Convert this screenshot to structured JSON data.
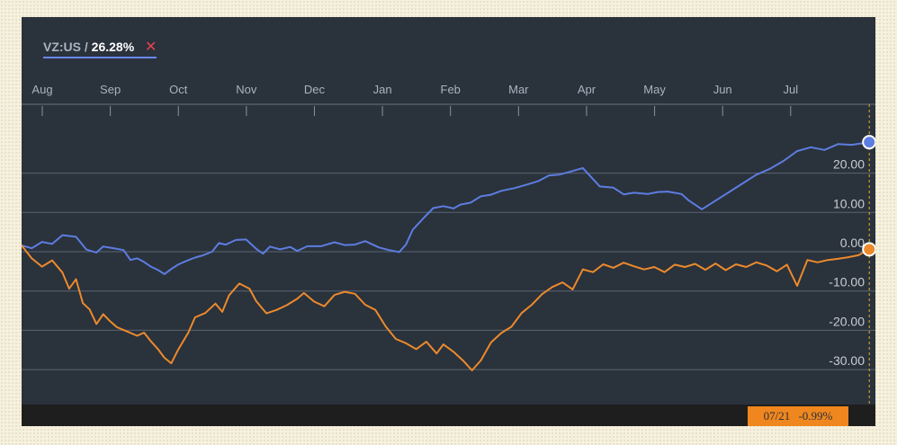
{
  "legend": {
    "ticker": "VZ:US",
    "separator": "/",
    "change": "26.28%",
    "close_symbol": "✕"
  },
  "badge": {
    "date": "07/21",
    "value": "-0.99%"
  },
  "colors": {
    "background": "#2a323c",
    "series_blue": "#5d7de0",
    "series_orange": "#ec8a2c",
    "cursor": "#e5b021",
    "grid": "#5b6570",
    "badge": "#f0861e"
  },
  "chart_data": {
    "type": "line",
    "x_months": [
      "Aug",
      "Sep",
      "Oct",
      "Nov",
      "Dec",
      "Jan",
      "Feb",
      "Mar",
      "Apr",
      "May",
      "Jun",
      "Jul"
    ],
    "y_ticks": [
      "20.00",
      "10.00",
      "0.00",
      "-10.00",
      "-20.00",
      "-30.00"
    ],
    "ylim": [
      -37,
      33
    ],
    "x_range": [
      0,
      12.55
    ],
    "grid": "horizontal",
    "cursor_x": 12.46,
    "series": [
      {
        "name": "VZ:US",
        "color": "#5d7de0",
        "end_value": 26.28,
        "points": [
          [
            0.0,
            0.0
          ],
          [
            0.15,
            -0.7
          ],
          [
            0.3,
            0.9
          ],
          [
            0.45,
            0.4
          ],
          [
            0.6,
            2.6
          ],
          [
            0.8,
            2.2
          ],
          [
            0.95,
            -1.0
          ],
          [
            1.0,
            -1.3
          ],
          [
            1.1,
            -1.8
          ],
          [
            1.2,
            -0.3
          ],
          [
            1.35,
            -0.7
          ],
          [
            1.5,
            -1.2
          ],
          [
            1.6,
            -3.7
          ],
          [
            1.7,
            -3.3
          ],
          [
            1.8,
            -4.2
          ],
          [
            1.9,
            -5.4
          ],
          [
            2.0,
            -6.2
          ],
          [
            2.1,
            -7.3
          ],
          [
            2.2,
            -6.0
          ],
          [
            2.3,
            -4.9
          ],
          [
            2.4,
            -4.1
          ],
          [
            2.55,
            -3.1
          ],
          [
            2.65,
            -2.6
          ],
          [
            2.8,
            -1.6
          ],
          [
            2.9,
            0.6
          ],
          [
            3.0,
            0.2
          ],
          [
            3.15,
            1.4
          ],
          [
            3.3,
            1.5
          ],
          [
            3.45,
            -0.9
          ],
          [
            3.55,
            -2.1
          ],
          [
            3.65,
            -0.3
          ],
          [
            3.8,
            -1.0
          ],
          [
            3.95,
            -0.4
          ],
          [
            4.05,
            -1.4
          ],
          [
            4.2,
            -0.2
          ],
          [
            4.4,
            -0.2
          ],
          [
            4.6,
            0.8
          ],
          [
            4.75,
            0.1
          ],
          [
            4.9,
            0.2
          ],
          [
            5.05,
            1.1
          ],
          [
            5.25,
            -0.5
          ],
          [
            5.4,
            -1.2
          ],
          [
            5.55,
            -1.7
          ],
          [
            5.65,
            0.2
          ],
          [
            5.75,
            4.0
          ],
          [
            5.9,
            6.8
          ],
          [
            6.05,
            9.5
          ],
          [
            6.2,
            10.0
          ],
          [
            6.35,
            9.4
          ],
          [
            6.45,
            10.4
          ],
          [
            6.6,
            10.9
          ],
          [
            6.75,
            12.5
          ],
          [
            6.9,
            12.9
          ],
          [
            7.05,
            13.9
          ],
          [
            7.25,
            14.6
          ],
          [
            7.45,
            15.6
          ],
          [
            7.6,
            16.4
          ],
          [
            7.75,
            17.8
          ],
          [
            7.9,
            18.0
          ],
          [
            8.05,
            18.7
          ],
          [
            8.25,
            19.7
          ],
          [
            8.35,
            17.8
          ],
          [
            8.5,
            15.0
          ],
          [
            8.7,
            14.7
          ],
          [
            8.85,
            13.0
          ],
          [
            9.0,
            13.4
          ],
          [
            9.2,
            13.1
          ],
          [
            9.35,
            13.6
          ],
          [
            9.5,
            13.7
          ],
          [
            9.7,
            13.1
          ],
          [
            9.8,
            11.5
          ],
          [
            10.0,
            9.2
          ],
          [
            10.2,
            11.4
          ],
          [
            10.4,
            13.6
          ],
          [
            10.6,
            15.8
          ],
          [
            10.8,
            18.0
          ],
          [
            11.0,
            19.5
          ],
          [
            11.2,
            21.5
          ],
          [
            11.4,
            24.0
          ],
          [
            11.6,
            25.0
          ],
          [
            11.8,
            24.3
          ],
          [
            12.0,
            25.8
          ],
          [
            12.2,
            25.6
          ],
          [
            12.46,
            26.28
          ]
        ]
      },
      {
        "name": "",
        "color": "#ec8a2c",
        "end_value": -0.99,
        "points": [
          [
            0.0,
            0.0
          ],
          [
            0.15,
            -3.3
          ],
          [
            0.3,
            -5.4
          ],
          [
            0.45,
            -3.8
          ],
          [
            0.6,
            -6.9
          ],
          [
            0.7,
            -11.0
          ],
          [
            0.8,
            -8.6
          ],
          [
            0.9,
            -14.7
          ],
          [
            1.0,
            -16.3
          ],
          [
            1.1,
            -20.0
          ],
          [
            1.2,
            -17.5
          ],
          [
            1.3,
            -19.3
          ],
          [
            1.4,
            -20.8
          ],
          [
            1.55,
            -21.9
          ],
          [
            1.7,
            -23.0
          ],
          [
            1.8,
            -22.2
          ],
          [
            1.9,
            -24.4
          ],
          [
            2.0,
            -26.3
          ],
          [
            2.1,
            -28.6
          ],
          [
            2.2,
            -30.0
          ],
          [
            2.3,
            -26.6
          ],
          [
            2.45,
            -22.2
          ],
          [
            2.55,
            -18.3
          ],
          [
            2.7,
            -17.2
          ],
          [
            2.85,
            -14.8
          ],
          [
            2.95,
            -16.9
          ],
          [
            3.05,
            -12.7
          ],
          [
            3.2,
            -9.7
          ],
          [
            3.35,
            -11.0
          ],
          [
            3.45,
            -14.2
          ],
          [
            3.6,
            -17.3
          ],
          [
            3.75,
            -16.4
          ],
          [
            3.9,
            -15.2
          ],
          [
            4.05,
            -13.6
          ],
          [
            4.15,
            -12.1
          ],
          [
            4.3,
            -14.3
          ],
          [
            4.45,
            -15.5
          ],
          [
            4.6,
            -12.6
          ],
          [
            4.75,
            -11.8
          ],
          [
            4.9,
            -12.3
          ],
          [
            5.05,
            -15.1
          ],
          [
            5.2,
            -16.4
          ],
          [
            5.35,
            -20.6
          ],
          [
            5.5,
            -23.8
          ],
          [
            5.65,
            -24.9
          ],
          [
            5.8,
            -26.4
          ],
          [
            5.95,
            -24.5
          ],
          [
            6.1,
            -27.5
          ],
          [
            6.2,
            -25.2
          ],
          [
            6.35,
            -27.1
          ],
          [
            6.5,
            -29.5
          ],
          [
            6.62,
            -31.8
          ],
          [
            6.75,
            -29.3
          ],
          [
            6.9,
            -24.7
          ],
          [
            7.05,
            -22.3
          ],
          [
            7.2,
            -20.7
          ],
          [
            7.35,
            -17.2
          ],
          [
            7.5,
            -15.1
          ],
          [
            7.65,
            -12.4
          ],
          [
            7.8,
            -10.6
          ],
          [
            7.95,
            -9.4
          ],
          [
            8.1,
            -11.2
          ],
          [
            8.25,
            -6.1
          ],
          [
            8.4,
            -6.8
          ],
          [
            8.55,
            -4.8
          ],
          [
            8.7,
            -5.7
          ],
          [
            8.85,
            -4.4
          ],
          [
            9.0,
            -5.3
          ],
          [
            9.15,
            -6.1
          ],
          [
            9.3,
            -5.5
          ],
          [
            9.45,
            -6.8
          ],
          [
            9.6,
            -4.9
          ],
          [
            9.75,
            -5.5
          ],
          [
            9.9,
            -4.7
          ],
          [
            10.05,
            -6.2
          ],
          [
            10.2,
            -4.6
          ],
          [
            10.35,
            -6.3
          ],
          [
            10.5,
            -4.8
          ],
          [
            10.65,
            -5.5
          ],
          [
            10.8,
            -4.3
          ],
          [
            10.95,
            -5.1
          ],
          [
            11.1,
            -6.6
          ],
          [
            11.25,
            -4.9
          ],
          [
            11.4,
            -10.3
          ],
          [
            11.55,
            -3.7
          ],
          [
            11.7,
            -4.3
          ],
          [
            11.85,
            -3.7
          ],
          [
            12.0,
            -3.4
          ],
          [
            12.15,
            -3.0
          ],
          [
            12.3,
            -2.5
          ],
          [
            12.46,
            -0.99
          ]
        ]
      }
    ]
  }
}
